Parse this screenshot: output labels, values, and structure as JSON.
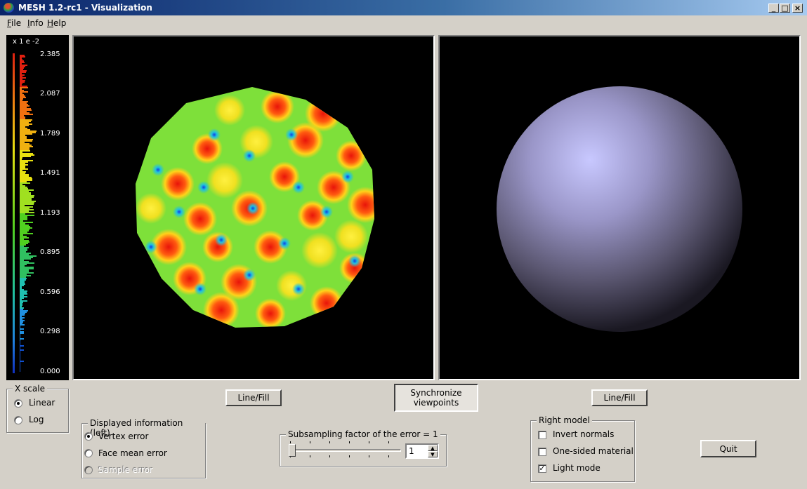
{
  "window": {
    "title": "MESH 1.2-rc1 - Visualization",
    "controls": [
      "_",
      "□",
      "×"
    ]
  },
  "menu": [
    {
      "label": "File",
      "underline": "F",
      "rest": "ile"
    },
    {
      "label": "Info",
      "underline": "I",
      "rest": "nfo"
    },
    {
      "label": "Help",
      "underline": "H",
      "rest": "elp"
    }
  ],
  "colorbar": {
    "scale_label": "x 1 e -2",
    "ticks": [
      "2.385",
      "2.087",
      "1.789",
      "1.491",
      "1.193",
      "0.895",
      "0.596",
      "0.298",
      "0.000"
    ]
  },
  "viewports": {
    "left": {
      "line_fill_label": "Line/Fill"
    },
    "right": {
      "line_fill_label": "Line/Fill"
    },
    "sync_label_line1": "Synchronize",
    "sync_label_line2": "viewpoints"
  },
  "xscale": {
    "title": "X scale",
    "options": [
      {
        "label": "Linear",
        "checked": true
      },
      {
        "label": "Log",
        "checked": false
      }
    ]
  },
  "displayed_info": {
    "title": "Displayed information (left)",
    "options": [
      {
        "label": "Vertex error",
        "checked": true,
        "enabled": true
      },
      {
        "label": "Face mean error",
        "checked": false,
        "enabled": true
      },
      {
        "label": "Sample error",
        "checked": false,
        "enabled": false
      }
    ]
  },
  "subsampling": {
    "title": "Subsampling factor of the error = 1",
    "spin_value": "1",
    "slider_fraction": 0.0
  },
  "right_model": {
    "title": "Right model",
    "options": [
      {
        "label": "Invert normals",
        "checked": false
      },
      {
        "label": "One-sided material",
        "checked": false
      },
      {
        "label": "Light mode",
        "checked": true
      }
    ]
  },
  "quit_label": "Quit",
  "colors": {
    "title_start": "#0a246a",
    "title_end": "#a6caf0",
    "face": "#d4d0c8"
  }
}
